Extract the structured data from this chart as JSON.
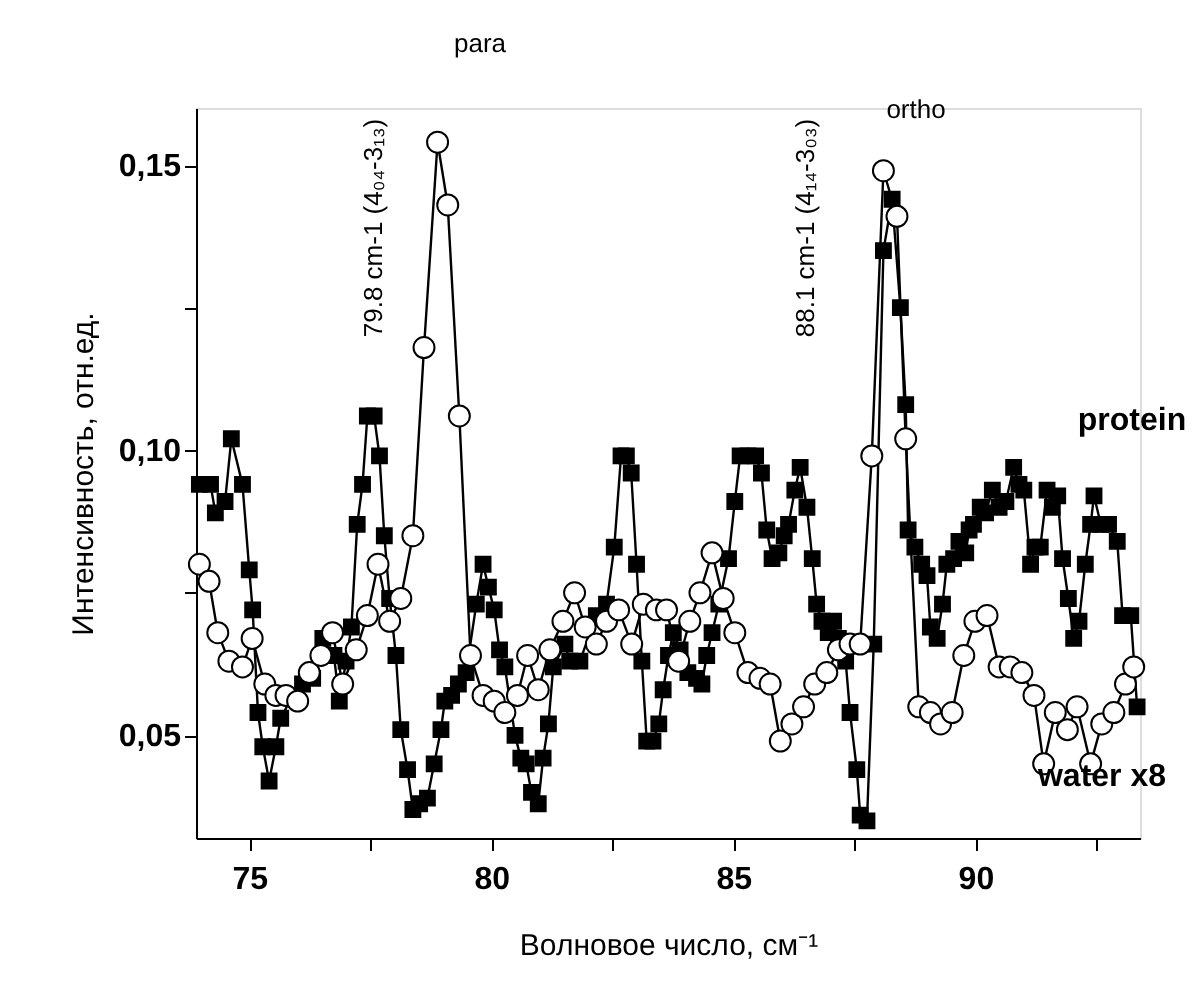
{
  "chart_data": {
    "type": "line",
    "xlabel": "Волновое число, см⁻¹",
    "ylabel": "Интенсивность, отн.ед.",
    "xlim": [
      73.9,
      93.4
    ],
    "ylim": [
      0.032,
      0.16
    ],
    "xticks": [
      75,
      {
        "value": 77.5,
        "label": null
      },
      80,
      {
        "value": 82.5,
        "label": null
      },
      85,
      {
        "value": 87.5,
        "label": null
      },
      90,
      {
        "value": 92.5,
        "label": null
      }
    ],
    "yticks": [
      {
        "value": 0.05,
        "label": "0,05"
      },
      {
        "value": 0.075,
        "label": null
      },
      {
        "value": 0.1,
        "label": "0,10"
      },
      {
        "value": 0.125,
        "label": null
      },
      {
        "value": 0.15,
        "label": "0,15"
      }
    ],
    "grid": false,
    "annotations": [
      "para",
      "ortho",
      "79.8 cm-1 (4₀₄-3₁₃)",
      "88.1 cm-1 (4₁₄-3₀₃)"
    ],
    "series": [
      {
        "name": "protein",
        "color": "#000000",
        "marker": "square",
        "x": [
          73.97,
          74.2,
          74.3,
          74.5,
          74.63,
          74.86,
          75.0,
          75.07,
          75.18,
          75.28,
          75.41,
          75.55,
          75.65,
          75.9,
          76.1,
          76.31,
          76.52,
          76.75,
          76.86,
          77.0,
          77.11,
          77.23,
          77.34,
          77.44,
          77.58,
          77.69,
          77.79,
          77.9,
          78.03,
          78.13,
          78.27,
          78.38,
          78.52,
          78.68,
          78.82,
          78.96,
          79.04,
          79.18,
          79.32,
          79.48,
          79.69,
          79.83,
          79.94,
          80.06,
          80.17,
          80.28,
          80.49,
          80.61,
          80.72,
          80.83,
          80.97,
          81.07,
          81.18,
          81.28,
          81.52,
          81.62,
          81.83,
          82.17,
          82.38,
          82.54,
          82.68,
          82.79,
          82.89,
          83.0,
          83.11,
          83.21,
          83.34,
          83.46,
          83.55,
          83.66,
          83.76,
          83.9,
          84.06,
          84.24,
          84.35,
          84.45,
          84.56,
          84.7,
          84.9,
          85.03,
          85.14,
          85.3,
          85.46,
          85.58,
          85.69,
          85.8,
          85.94,
          86.05,
          86.14,
          86.27,
          86.38,
          86.52,
          86.63,
          86.72,
          86.83,
          86.96,
          87.07,
          87.17,
          87.32,
          87.41,
          87.55,
          87.62,
          87.76,
          87.9,
          88.1,
          88.28,
          88.45,
          88.56,
          88.61,
          88.75,
          88.89,
          89.0,
          89.07,
          89.21,
          89.32,
          89.41,
          89.55,
          89.66,
          89.8,
          89.87,
          89.96,
          90.1,
          90.21,
          90.35,
          90.49,
          90.63,
          90.79,
          90.9,
          91.0,
          91.14,
          91.23,
          91.34,
          91.48,
          91.59,
          91.7,
          91.8,
          91.92,
          92.03,
          92.14,
          92.27,
          92.38,
          92.45,
          92.59,
          92.75,
          92.93,
          93.04,
          93.21,
          93.34
        ],
        "values": [
          0.094,
          0.094,
          0.089,
          0.091,
          0.102,
          0.094,
          0.079,
          0.072,
          0.054,
          0.048,
          0.042,
          0.048,
          0.053,
          0.057,
          0.059,
          0.06,
          0.067,
          0.064,
          0.056,
          0.063,
          0.069,
          0.087,
          0.094,
          0.106,
          0.106,
          0.099,
          0.085,
          0.074,
          0.064,
          0.051,
          0.044,
          0.037,
          0.038,
          0.039,
          0.045,
          0.051,
          0.056,
          0.057,
          0.059,
          0.061,
          0.073,
          0.08,
          0.076,
          0.072,
          0.065,
          0.062,
          0.05,
          0.046,
          0.045,
          0.04,
          0.038,
          0.046,
          0.052,
          0.062,
          0.066,
          0.063,
          0.063,
          0.071,
          0.073,
          0.083,
          0.099,
          0.099,
          0.096,
          0.08,
          0.063,
          0.049,
          0.049,
          0.052,
          0.058,
          0.064,
          0.068,
          0.065,
          0.061,
          0.06,
          0.059,
          0.064,
          0.068,
          0.073,
          0.081,
          0.091,
          0.099,
          0.099,
          0.099,
          0.096,
          0.086,
          0.081,
          0.082,
          0.085,
          0.087,
          0.093,
          0.097,
          0.09,
          0.081,
          0.073,
          0.07,
          0.068,
          0.07,
          0.067,
          0.063,
          0.054,
          0.044,
          0.036,
          0.035,
          0.066,
          0.135,
          0.144,
          0.125,
          0.108,
          0.086,
          0.083,
          0.08,
          0.078,
          0.069,
          0.067,
          0.073,
          0.08,
          0.081,
          0.084,
          0.082,
          0.086,
          0.087,
          0.09,
          0.089,
          0.093,
          0.09,
          0.091,
          0.097,
          0.094,
          0.093,
          0.08,
          0.083,
          0.083,
          0.093,
          0.09,
          0.092,
          0.081,
          0.074,
          0.067,
          0.07,
          0.08,
          0.087,
          0.092,
          0.087,
          0.087,
          0.084,
          0.071,
          0.071,
          0.055
        ]
      },
      {
        "name": "water x8",
        "color": "#000000",
        "marker": "circle",
        "x": [
          73.97,
          74.17,
          74.35,
          74.58,
          74.86,
          75.06,
          75.32,
          75.55,
          75.76,
          76.0,
          76.24,
          76.48,
          76.72,
          76.93,
          77.21,
          77.44,
          77.66,
          77.9,
          78.13,
          78.38,
          78.61,
          78.89,
          79.1,
          79.34,
          79.57,
          79.83,
          80.06,
          80.28,
          80.54,
          80.75,
          80.97,
          81.21,
          81.48,
          81.72,
          81.94,
          82.17,
          82.38,
          82.63,
          82.9,
          83.14,
          83.41,
          83.62,
          83.87,
          84.1,
          84.31,
          84.56,
          84.79,
          85.03,
          85.3,
          85.55,
          85.76,
          85.97,
          86.21,
          86.45,
          86.68,
          86.93,
          87.17,
          87.41,
          87.62,
          87.86,
          88.1,
          88.38,
          88.56,
          88.83,
          89.07,
          89.28,
          89.52,
          89.76,
          89.99,
          90.24,
          90.49,
          90.72,
          90.96,
          91.21,
          91.41,
          91.65,
          91.9,
          92.1,
          92.38,
          92.61,
          92.86,
          93.1,
          93.27
        ],
        "values": [
          0.08,
          0.077,
          0.068,
          0.063,
          0.062,
          0.067,
          0.059,
          0.057,
          0.057,
          0.056,
          0.061,
          0.064,
          0.068,
          0.059,
          0.065,
          0.071,
          0.08,
          0.07,
          0.074,
          0.085,
          0.118,
          0.154,
          0.143,
          0.106,
          0.064,
          0.057,
          0.056,
          0.054,
          0.057,
          0.064,
          0.058,
          0.065,
          0.07,
          0.075,
          0.069,
          0.066,
          0.07,
          0.072,
          0.066,
          0.073,
          0.072,
          0.072,
          0.063,
          0.07,
          0.075,
          0.082,
          0.074,
          0.068,
          0.061,
          0.06,
          0.059,
          0.049,
          0.052,
          0.055,
          0.059,
          0.061,
          0.065,
          0.066,
          0.066,
          0.099,
          0.149,
          0.141,
          0.102,
          0.055,
          0.054,
          0.052,
          0.054,
          0.064,
          0.07,
          0.071,
          0.062,
          0.062,
          0.061,
          0.057,
          0.045,
          0.054,
          0.051,
          0.055,
          0.045,
          0.052,
          0.054,
          0.059,
          0.062
        ]
      }
    ]
  }
}
